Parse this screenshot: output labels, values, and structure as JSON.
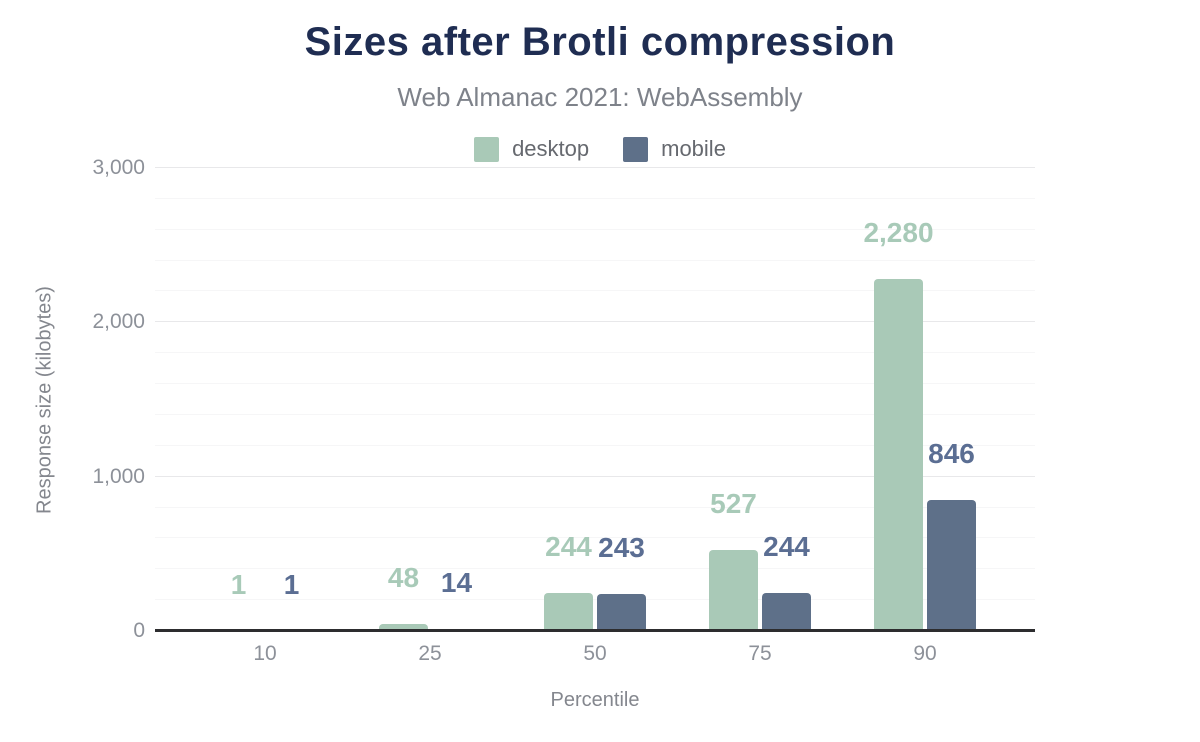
{
  "header": {
    "title": "Sizes after Brotli compression",
    "subtitle": "Web Almanac 2021: WebAssembly"
  },
  "chart_data": {
    "type": "bar",
    "title": "Sizes after Brotli compression",
    "subtitle": "Web Almanac 2021: WebAssembly",
    "categories": [
      "10",
      "25",
      "50",
      "75",
      "90"
    ],
    "series": [
      {
        "name": "desktop",
        "color": "#a9c9b7",
        "label_color": "#a8cab8",
        "values": [
          1,
          48,
          244,
          527,
          2280
        ],
        "labels": [
          "1",
          "48",
          "244",
          "527",
          "2,280"
        ]
      },
      {
        "name": "mobile",
        "color": "#5e7089",
        "label_color": "#5b6e93",
        "values": [
          1,
          14,
          243,
          244,
          846
        ],
        "labels": [
          "1",
          "14",
          "243",
          "244",
          "846"
        ]
      }
    ],
    "xlabel": "Percentile",
    "ylabel": "Response size (kilobytes)",
    "ylim": [
      0,
      3000
    ],
    "yticks": [
      {
        "value": 0,
        "label": "0"
      },
      {
        "value": 1000,
        "label": "1,000"
      },
      {
        "value": 2000,
        "label": "2,000"
      },
      {
        "value": 3000,
        "label": "3,000"
      }
    ],
    "grid": {
      "minor_step": 200,
      "major_step": 1000,
      "visible": true
    },
    "legend_position": "top"
  }
}
